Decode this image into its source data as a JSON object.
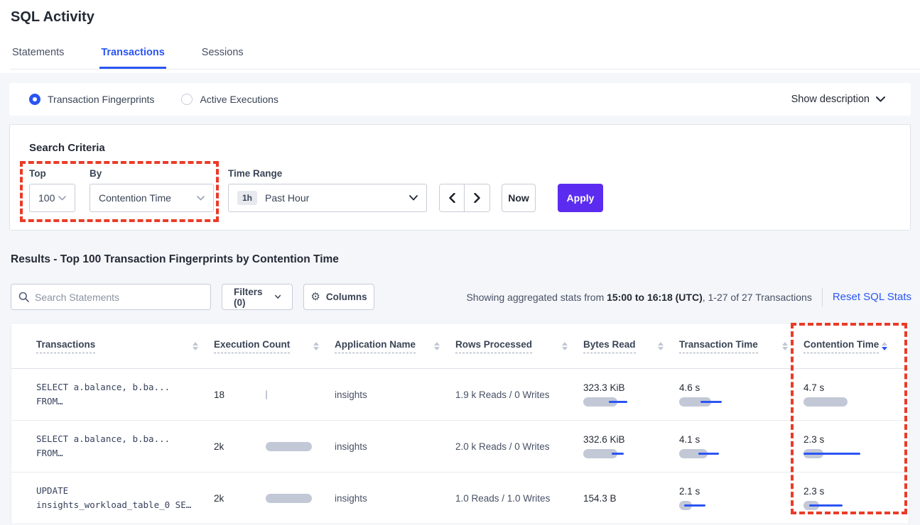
{
  "page": {
    "title": "SQL Activity"
  },
  "tabs": [
    {
      "label": "Statements",
      "active": false
    },
    {
      "label": "Transactions",
      "active": true
    },
    {
      "label": "Sessions",
      "active": false
    }
  ],
  "view_toggle": {
    "options": [
      {
        "label": "Transaction Fingerprints",
        "selected": true
      },
      {
        "label": "Active Executions",
        "selected": false
      }
    ],
    "show_description_label": "Show description"
  },
  "search_criteria": {
    "heading": "Search Criteria",
    "top": {
      "label": "Top",
      "value": "100"
    },
    "by": {
      "label": "By",
      "value": "Contention Time"
    },
    "time_range": {
      "label": "Time Range",
      "badge": "1h",
      "value": "Past Hour"
    },
    "now_label": "Now",
    "apply_label": "Apply"
  },
  "results": {
    "heading": "Results - Top 100 Transaction Fingerprints by Contention Time",
    "search_placeholder": "Search Statements",
    "filters_label": "Filters (0)",
    "columns_label": "Columns",
    "gear_icon": "⚙",
    "stats_prefix": "Showing aggregated stats from ",
    "stats_bold": "15:00 to 16:18 (UTC)",
    "stats_suffix": ", 1-27 of 27 Transactions",
    "reset_label": "Reset SQL Stats"
  },
  "table": {
    "headers": [
      {
        "label": "Transactions"
      },
      {
        "label": "Execution Count"
      },
      {
        "label": "Application Name"
      },
      {
        "label": "Rows Processed"
      },
      {
        "label": "Bytes Read"
      },
      {
        "label": "Transaction Time"
      },
      {
        "label": "Contention Time",
        "sorted": "desc"
      }
    ],
    "rows": [
      {
        "query_line1": "SELECT a.balance, b.ba...",
        "query_line2": "FROM…",
        "execution_count": "18",
        "execution_bar": {
          "gray": 2
        },
        "application": "insights",
        "rows_processed": "1.9 k Reads / 0 Writes",
        "bytes_read": "323.3 KiB",
        "bytes_bar": {
          "gray": 48,
          "line": [
            36,
            62
          ]
        },
        "transaction_time": "4.6 s",
        "transaction_bar": {
          "gray": 45,
          "line": [
            30,
            60
          ]
        },
        "contention_time": "4.7 s",
        "contention_bar": {
          "gray": 62
        }
      },
      {
        "query_line1": "SELECT a.balance, b.ba...",
        "query_line2": "FROM…",
        "execution_count": "2k",
        "execution_bar": {
          "gray": 65
        },
        "application": "insights",
        "rows_processed": "2.0 k Reads / 0 Writes",
        "bytes_read": "332.6 KiB",
        "bytes_bar": {
          "gray": 48,
          "line": [
            40,
            57
          ]
        },
        "transaction_time": "4.1 s",
        "transaction_bar": {
          "gray": 40,
          "line": [
            27,
            56
          ]
        },
        "contention_time": "2.3 s",
        "contention_bar": {
          "gray": 28,
          "line": [
            0,
            80
          ]
        }
      },
      {
        "query_line1": "UPDATE",
        "query_line2": "insights_workload_table_0 SE…",
        "execution_count": "2k",
        "execution_bar": {
          "gray": 65
        },
        "application": "insights",
        "rows_processed": "1.0 Reads / 1.0 Writes",
        "bytes_read": "154.3 B",
        "transaction_time": "2.1 s",
        "transaction_bar": {
          "gray": 18,
          "line": [
            7,
            37
          ]
        },
        "contention_time": "2.3 s",
        "contention_bar": {
          "gray": 22,
          "line": [
            8,
            55
          ]
        }
      }
    ]
  },
  "colors": {
    "accent_blue": "#2b55f2",
    "apply_purple": "#5c2bf0",
    "annotation_red": "#ea3b28",
    "bar_gray": "#c3c8d7"
  }
}
